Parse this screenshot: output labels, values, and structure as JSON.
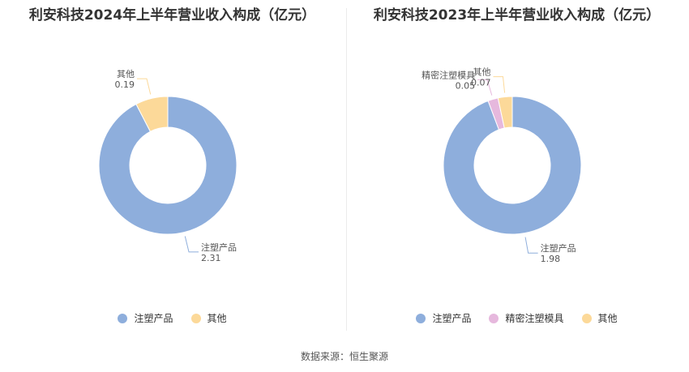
{
  "colors": {
    "注塑产品": "#8eaedc",
    "精密注塑模具": "#e6b8dd",
    "其他": "#fcd999"
  },
  "chart_data": [
    {
      "type": "pie",
      "title": "利安科技2024年上半年营业收入构成（亿元）",
      "slices": [
        {
          "name": "注塑产品",
          "value": 2.31,
          "label": "2.31"
        },
        {
          "name": "其他",
          "value": 0.19,
          "label": "0.19"
        }
      ],
      "legend": [
        "注塑产品",
        "其他"
      ],
      "legend_position": "bottom"
    },
    {
      "type": "pie",
      "title": "利安科技2023年上半年营业收入构成（亿元）",
      "slices": [
        {
          "name": "注塑产品",
          "value": 1.98,
          "label": "1.98"
        },
        {
          "name": "精密注塑模具",
          "value": 0.05,
          "label": "0.05"
        },
        {
          "name": "其他",
          "value": 0.07,
          "label": "0.07"
        }
      ],
      "legend": [
        "注塑产品",
        "精密注塑模具",
        "其他"
      ],
      "legend_position": "bottom"
    }
  ],
  "source": "数据来源：恒生聚源"
}
